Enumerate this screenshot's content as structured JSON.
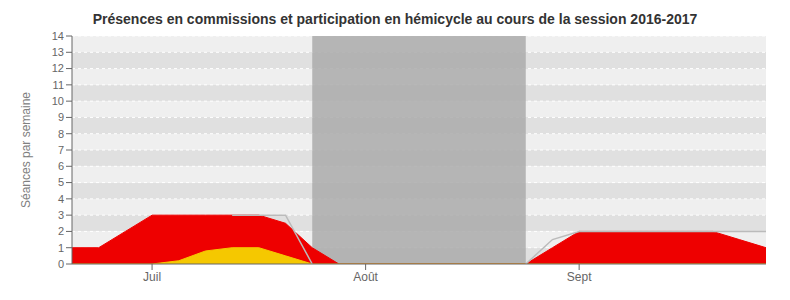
{
  "chart_data": {
    "type": "area",
    "title": "Présences en commissions et participation en hémicycle au cours de la session 2016-2017",
    "y_label": "Séances par semaine",
    "xlim": [
      0,
      13
    ],
    "xticks": [
      {
        "value": 1.5,
        "label": "Juil"
      },
      {
        "value": 5.5,
        "label": "Août"
      },
      {
        "value": 9.5,
        "label": "Sept"
      }
    ],
    "ylim": [
      0,
      14
    ],
    "yticks": [
      0,
      1,
      2,
      3,
      4,
      5,
      6,
      7,
      8,
      9,
      10,
      11,
      12,
      13,
      14
    ],
    "grid": true,
    "highlight": {
      "x": [
        4.5,
        8.5
      ],
      "color": "#aaaaaa"
    },
    "series": [
      {
        "type": "area",
        "color": "#ee0000",
        "x": [
          0,
          0.5,
          1.0,
          1.5,
          2.0,
          2.5,
          3.0,
          3.5,
          4.0,
          4.5,
          5.0,
          8.5,
          9.0,
          9.5,
          10.0,
          10.5,
          11.0,
          11.5,
          12.0,
          12.5,
          13.0
        ],
        "values": [
          1.0,
          1.0,
          2.0,
          3.0,
          3.0,
          3.0,
          3.0,
          3.0,
          2.5,
          1.0,
          0.0,
          0.0,
          1.0,
          2.0,
          2.0,
          2.0,
          2.0,
          2.0,
          2.0,
          1.5,
          1.0
        ]
      },
      {
        "type": "area",
        "color": "#f5c800",
        "x": [
          0,
          1.5,
          2.0,
          2.5,
          3.0,
          3.5,
          4.0,
          4.5,
          13.0
        ],
        "values": [
          0,
          0.0,
          0.2,
          0.8,
          1.0,
          1.0,
          0.5,
          0.0,
          0.0
        ]
      },
      {
        "type": "line",
        "color": "#bbbbbb",
        "x": [
          3.0,
          3.5,
          4.0,
          4.5
        ],
        "values": [
          3.0,
          3.0,
          3.0,
          0.0
        ]
      },
      {
        "type": "line",
        "color": "#bbbbbb",
        "x": [
          8.5,
          9.0,
          9.5,
          10.0,
          10.5,
          11.0,
          11.5,
          12.0,
          12.5,
          13.0
        ],
        "values": [
          0.0,
          1.5,
          2.0,
          2.0,
          2.0,
          2.0,
          2.0,
          2.0,
          2.0,
          2.0
        ]
      }
    ]
  }
}
